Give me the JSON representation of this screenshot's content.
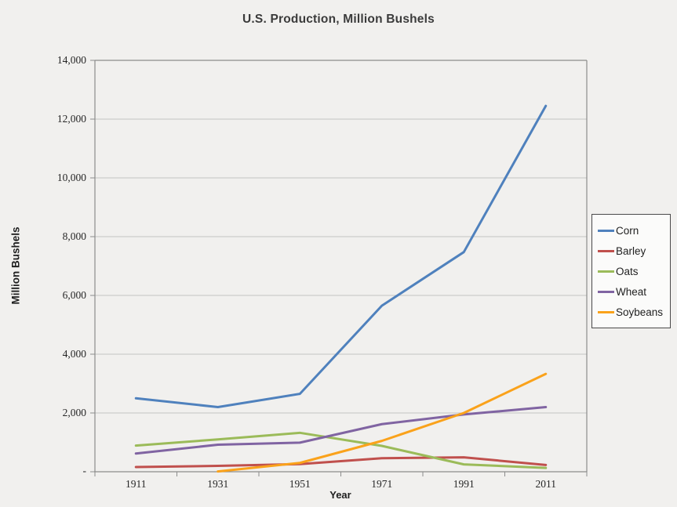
{
  "title": "U.S. Production, Million Bushels",
  "chart_data": {
    "type": "line",
    "title": "U.S. Production, Million Bushels",
    "xlabel": "Year",
    "ylabel": "Million Bushels",
    "categories": [
      1911,
      1931,
      1951,
      1971,
      1991,
      2011
    ],
    "x_tick_labels": [
      "1911",
      "1931",
      "1951",
      "1971",
      "1991",
      "2011"
    ],
    "ylim": [
      0,
      14000
    ],
    "y_tick_step": 2000,
    "y_tick_labels": [
      "-",
      "2,000",
      "4,000",
      "6,000",
      "8,000",
      "10,000",
      "12,000",
      "14,000"
    ],
    "grid": true,
    "legend_position": "right",
    "series": [
      {
        "name": "Corn",
        "color": "#4F81BD",
        "values": [
          2500,
          2200,
          2650,
          5650,
          7475,
          12450
        ]
      },
      {
        "name": "Barley",
        "color": "#C0504D",
        "values": [
          160,
          200,
          260,
          460,
          490,
          230
        ]
      },
      {
        "name": "Oats",
        "color": "#9BBB59",
        "values": [
          890,
          1100,
          1325,
          880,
          250,
          130
        ]
      },
      {
        "name": "Wheat",
        "color": "#8064A2",
        "values": [
          620,
          920,
          990,
          1620,
          1950,
          2200
        ]
      },
      {
        "name": "Soybeans",
        "color": "#FAA21B",
        "values": [
          null,
          10,
          300,
          1050,
          2000,
          3330
        ]
      }
    ]
  },
  "colors": {
    "background": "#F1F0EE",
    "gridline": "#C4C3C2",
    "axis_line": "#8C8C8C",
    "tick_text": "#262626",
    "title_text": "#3B3B3B",
    "legend_border": "#4A4A4A",
    "legend_fill": "#FBFBFA"
  }
}
